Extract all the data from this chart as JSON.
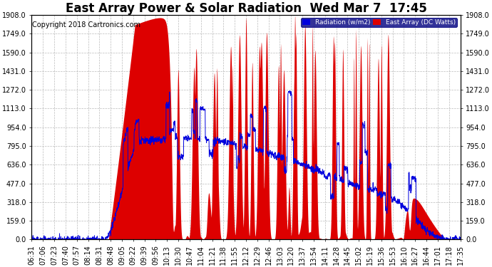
{
  "title": "East Array Power & Solar Radiation  Wed Mar 7  17:45",
  "copyright": "Copyright 2018 Cartronics.com",
  "legend_labels": [
    "Radiation (w/m2)",
    "East Array (DC Watts)"
  ],
  "legend_colors": [
    "#0000dd",
    "#dd0000"
  ],
  "y_ticks": [
    0.0,
    159.0,
    318.0,
    477.0,
    636.0,
    795.0,
    954.0,
    1113.0,
    1272.0,
    1431.0,
    1590.0,
    1749.0,
    1908.0
  ],
  "ylim": [
    0.0,
    1908.0
  ],
  "background_color": "#ffffff",
  "plot_bg_color": "#ffffff",
  "grid_color": "#aaaaaa",
  "x_labels": [
    "06:31",
    "07:06",
    "07:23",
    "07:40",
    "07:57",
    "08:14",
    "08:31",
    "08:48",
    "09:05",
    "09:22",
    "09:39",
    "09:56",
    "10:13",
    "10:30",
    "10:47",
    "11:04",
    "11:21",
    "11:38",
    "11:55",
    "12:12",
    "12:29",
    "12:46",
    "13:03",
    "13:20",
    "13:37",
    "13:54",
    "14:11",
    "14:28",
    "14:45",
    "15:02",
    "15:19",
    "15:36",
    "15:53",
    "16:10",
    "16:27",
    "16:44",
    "17:01",
    "17:18",
    "17:35"
  ],
  "red_fill_color": "#dd0000",
  "blue_line_color": "#0000dd",
  "title_fontsize": 12,
  "tick_fontsize": 7,
  "copyright_fontsize": 7
}
